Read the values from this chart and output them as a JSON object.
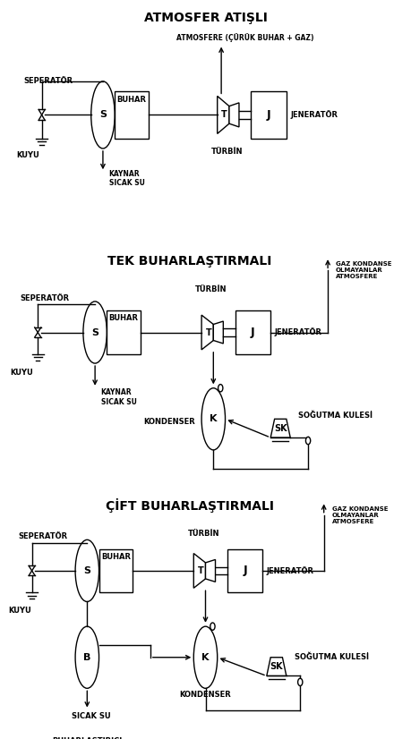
{
  "title1": "ATMOSFER ATIŞLI",
  "title2": "TEK BUHARLAŞTIRMALI",
  "title3": "ÇİFT BUHARLAŞTIRMALI",
  "bg_color": "#ffffff",
  "line_color": "#000000",
  "fig_width": 4.59,
  "fig_height": 8.26,
  "dpi": 100
}
